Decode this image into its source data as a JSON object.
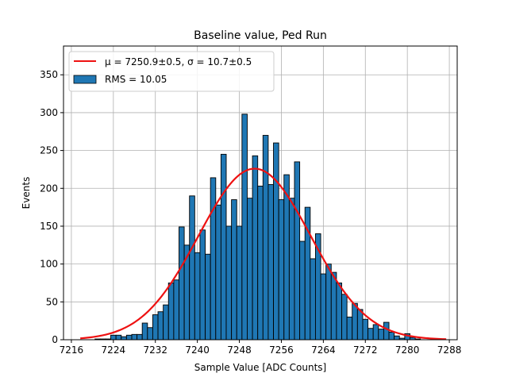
{
  "chart_data": {
    "type": "bar",
    "title": "Baseline value, Ped Run",
    "xlabel": "Sample Value [ADC Counts]",
    "ylabel": "Events",
    "xlim": [
      7214.5,
      7289.5
    ],
    "ylim": [
      0,
      388
    ],
    "grid": true,
    "legend_position": "top-left",
    "bin_width": 1,
    "x_ticks": [
      7216,
      7224,
      7232,
      7240,
      7248,
      7256,
      7264,
      7272,
      7280,
      7288
    ],
    "y_ticks": [
      0,
      50,
      100,
      150,
      200,
      250,
      300,
      350
    ],
    "bins": [
      7221,
      7222,
      7223,
      7224,
      7225,
      7226,
      7227,
      7228,
      7229,
      7230,
      7231,
      7232,
      7233,
      7234,
      7235,
      7236,
      7237,
      7238,
      7239,
      7240,
      7241,
      7242,
      7243,
      7244,
      7245,
      7246,
      7247,
      7248,
      7249,
      7250,
      7251,
      7252,
      7253,
      7254,
      7255,
      7256,
      7257,
      7258,
      7259,
      7260,
      7261,
      7262,
      7263,
      7264,
      7265,
      7266,
      7267,
      7268,
      7269,
      7270,
      7271,
      7272,
      7273,
      7274,
      7275,
      7276,
      7277,
      7278,
      7279,
      7280,
      7281,
      7282
    ],
    "counts": [
      1,
      1,
      1,
      6,
      6,
      4,
      6,
      7,
      7,
      22,
      16,
      33,
      37,
      46,
      75,
      79,
      149,
      125,
      190,
      115,
      145,
      113,
      214,
      178,
      245,
      150,
      185,
      150,
      298,
      187,
      243,
      203,
      270,
      205,
      260,
      185,
      218,
      187,
      235,
      130,
      175,
      107,
      140,
      87,
      100,
      89,
      75,
      60,
      30,
      48,
      40,
      27,
      15,
      20,
      14,
      23,
      10,
      5,
      2,
      8,
      3,
      1
    ],
    "fit": {
      "mu": 7250.9,
      "sigma": 10.7,
      "amplitude": 226,
      "x_range": [
        7217.7,
        7287.4
      ],
      "color": "#ee1111"
    },
    "series": [
      {
        "name": "fit",
        "label": "μ = 7250.9±0.5, σ = 10.7±0.5",
        "kind": "line",
        "color": "#ee1111"
      },
      {
        "name": "histogram",
        "label": "RMS = 10.05",
        "kind": "bar",
        "color": "#1f77b4"
      }
    ]
  }
}
